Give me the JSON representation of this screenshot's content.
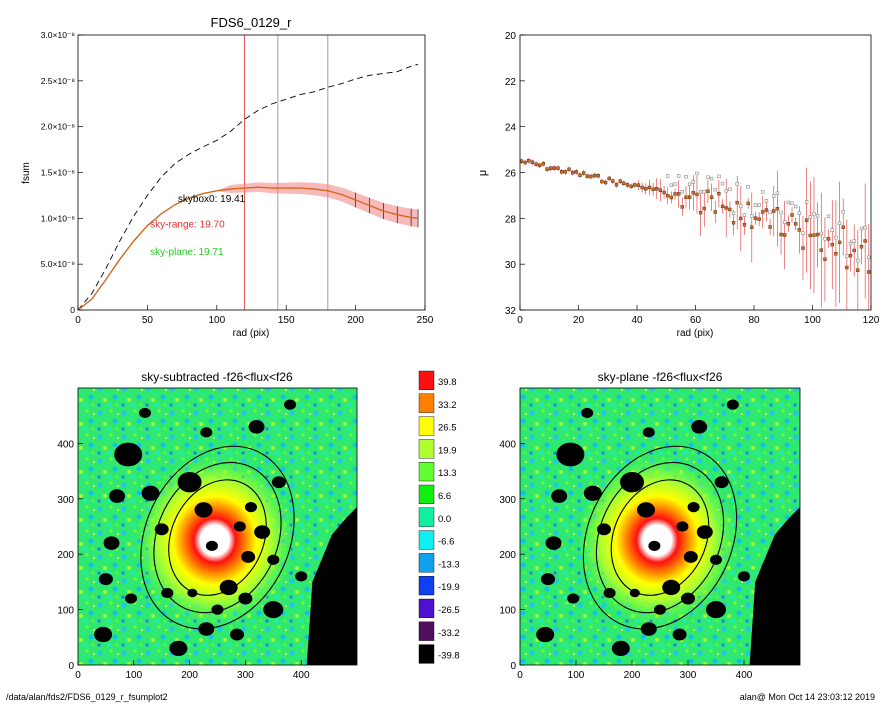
{
  "footer": {
    "left": "/data/alan/fds2/FDS6_0129_r_fsumplot2",
    "right": "alan@  Mon Oct 14 23:03:12 2019"
  },
  "colors": {
    "profile_line": "#d2691e",
    "error_band": "#f08080",
    "sky_range": "#e03030",
    "sky_plane": "#22cc22",
    "marker_gray": "#888888"
  },
  "chart_data": [
    {
      "type": "line",
      "title": "FDS6_0129_r",
      "xlabel": "rad (pix)",
      "ylabel": "fsum",
      "xlim": [
        0,
        250
      ],
      "ylim": [
        0,
        3e-08
      ],
      "xticks": [
        "0",
        "50",
        "100",
        "150",
        "200",
        "250"
      ],
      "yticks": [
        "0",
        "5.0×10⁻⁹",
        "1.0×10⁻⁸",
        "1.5×10⁻⁸",
        "2.0×10⁻⁸",
        "2.5×10⁻⁸",
        "3.0×10⁻⁸"
      ],
      "ytick_values": [
        0,
        5e-09,
        1e-08,
        1.5e-08,
        2e-08,
        2.5e-08,
        3e-08
      ],
      "vlines": [
        {
          "x": 120,
          "color": "#e03030"
        },
        {
          "x": 144,
          "color": "#888888"
        },
        {
          "x": 180,
          "color": "#888888"
        }
      ],
      "series": [
        {
          "style": "dashed",
          "x": [
            0,
            10,
            20,
            30,
            40,
            50,
            60,
            70,
            80,
            90,
            100,
            110,
            120,
            130,
            140,
            150,
            160,
            170,
            180,
            190,
            200,
            210,
            220,
            230,
            240,
            245
          ],
          "y": [
            0,
            1.8e-09,
            4.5e-09,
            7.5e-09,
            1.02e-08,
            1.25e-08,
            1.45e-08,
            1.6e-08,
            1.7e-08,
            1.78e-08,
            1.85e-08,
            1.95e-08,
            2.08e-08,
            2.18e-08,
            2.25e-08,
            2.3e-08,
            2.35e-08,
            2.38e-08,
            2.43e-08,
            2.47e-08,
            2.52e-08,
            2.56e-08,
            2.58e-08,
            2.6e-08,
            2.66e-08,
            2.68e-08
          ]
        },
        {
          "style": "solid",
          "x": [
            0,
            10,
            20,
            30,
            40,
            50,
            60,
            70,
            80,
            90,
            100,
            110,
            120,
            130,
            140,
            150,
            160,
            170,
            180,
            190,
            200,
            210,
            220,
            230,
            240,
            245
          ],
          "y": [
            0,
            1.2e-09,
            3.3e-09,
            5.5e-09,
            7.5e-09,
            9.2e-09,
            1.05e-08,
            1.15e-08,
            1.22e-08,
            1.27e-08,
            1.3e-08,
            1.32e-08,
            1.33e-08,
            1.34e-08,
            1.33e-08,
            1.33e-08,
            1.33e-08,
            1.32e-08,
            1.3e-08,
            1.26e-08,
            1.2e-08,
            1.14e-08,
            1.08e-08,
            1.04e-08,
            1.01e-08,
            1e-08
          ]
        }
      ],
      "annotations": [
        {
          "text": "skybox0: 19.41",
          "x": 72,
          "y": 1.18e-08,
          "color": "#000000"
        },
        {
          "text": "sky-range: 19.70",
          "x": 52,
          "y": 9e-09,
          "color": "#e03030"
        },
        {
          "text": "sky-plane: 19.71",
          "x": 52,
          "y": 6e-09,
          "color": "#22cc22"
        }
      ]
    },
    {
      "type": "scatter",
      "title": "",
      "xlabel": "rad (pix)",
      "ylabel": "μ",
      "xlim": [
        0,
        120
      ],
      "ylim": [
        32,
        20
      ],
      "xticks": [
        "0",
        "20",
        "40",
        "60",
        "80",
        "100",
        "120"
      ],
      "yticks": [
        "20",
        "22",
        "24",
        "26",
        "28",
        "30",
        "32"
      ]
    },
    {
      "type": "heatmap",
      "title": "sky-subtracted -f26<flux<f26",
      "xlim": [
        0,
        500
      ],
      "ylim": [
        0,
        500
      ],
      "xticks": [
        "0",
        "100",
        "200",
        "300",
        "400"
      ],
      "yticks": [
        "0",
        "100",
        "200",
        "300",
        "400"
      ]
    },
    {
      "type": "heatmap",
      "title": "sky-plane -f26<flux<f26",
      "xlim": [
        0,
        500
      ],
      "ylim": [
        0,
        500
      ],
      "xticks": [
        "0",
        "100",
        "200",
        "300",
        "400"
      ],
      "yticks": [
        "0",
        "100",
        "200",
        "300",
        "400"
      ]
    }
  ],
  "colorbar": {
    "labels": [
      "39.8",
      "33.2",
      "26.5",
      "19.9",
      "13.3",
      "6.6",
      "0.0",
      "-6.6",
      "-13.3",
      "-19.9",
      "-26.5",
      "-33.2",
      "-39.8"
    ],
    "colors": [
      "#ff1010",
      "#ff8000",
      "#ffff00",
      "#b0ff30",
      "#60ff30",
      "#10f010",
      "#10f0a0",
      "#10f0f0",
      "#10a0f0",
      "#1040f0",
      "#5010d0",
      "#501060",
      "#000000"
    ]
  }
}
